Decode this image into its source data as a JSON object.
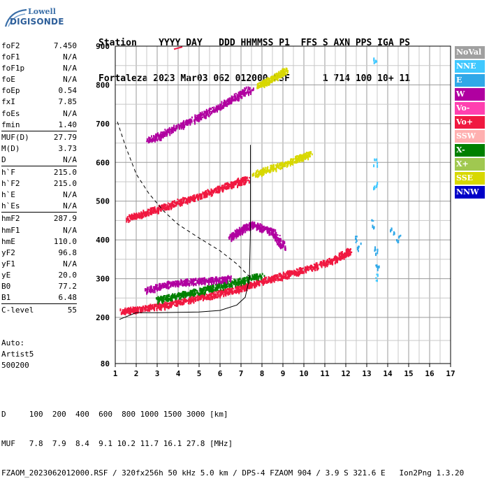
{
  "logo": {
    "top": "Lowell",
    "bottom": "DIGISONDE"
  },
  "header": {
    "line1": "Station    YYYY DAY   DDD HHMMSS P1  FFS S AXN PPS IGA PS",
    "line2": "Fortaleza 2023 Mar03 062 012000 RSF      1 714 100 10+ 11"
  },
  "params": {
    "group1": [
      {
        "name": "foF2",
        "value": "7.450"
      },
      {
        "name": "foF1",
        "value": "N/A"
      },
      {
        "name": "foF1p",
        "value": "N/A"
      },
      {
        "name": "foE",
        "value": "N/A"
      },
      {
        "name": "foEp",
        "value": "0.54"
      },
      {
        "name": "fxI",
        "value": "7.85"
      },
      {
        "name": "foEs",
        "value": "N/A"
      },
      {
        "name": "fmin",
        "value": "1.40"
      }
    ],
    "group2": [
      {
        "name": "MUF(D)",
        "value": "27.79"
      },
      {
        "name": "M(D)",
        "value": "3.73"
      },
      {
        "name": "D",
        "value": "N/A"
      }
    ],
    "group3": [
      {
        "name": "h`F",
        "value": "215.0"
      },
      {
        "name": "h`F2",
        "value": "215.0"
      },
      {
        "name": "h`E",
        "value": "N/A"
      },
      {
        "name": "h`Es",
        "value": "N/A"
      }
    ],
    "group4": [
      {
        "name": "hmF2",
        "value": "287.9"
      },
      {
        "name": "hmF1",
        "value": "N/A"
      },
      {
        "name": "hmE",
        "value": "110.0"
      },
      {
        "name": "yF2",
        "value": "96.8"
      },
      {
        "name": "yF1",
        "value": "N/A"
      },
      {
        "name": "yE",
        "value": "20.0"
      },
      {
        "name": "B0",
        "value": "77.2"
      },
      {
        "name": "B1",
        "value": "6.48"
      }
    ],
    "group5": [
      {
        "name": "C-level",
        "value": "55"
      }
    ]
  },
  "misc": {
    "line1": "Auto:",
    "line2": "Artist5",
    "line3": "500200"
  },
  "legend": [
    {
      "label": "NoVal",
      "color": "#a0a0a0"
    },
    {
      "label": "NNE",
      "color": "#40c8ff"
    },
    {
      "label": "E",
      "color": "#30a8e8"
    },
    {
      "label": "W",
      "color": "#b000a0"
    },
    {
      "label": "Vo-",
      "color": "#ff40b0"
    },
    {
      "label": "Vo+",
      "color": "#f01840"
    },
    {
      "label": "SSW",
      "color": "#ffb0b0"
    },
    {
      "label": "X-",
      "color": "#008000"
    },
    {
      "label": "X+",
      "color": "#a0c850"
    },
    {
      "label": "SSE",
      "color": "#d8d800"
    },
    {
      "label": "NNW",
      "color": "#0000c8"
    }
  ],
  "chart_data": {
    "type": "scatter",
    "xlim": [
      1,
      17
    ],
    "ylim": [
      80,
      900
    ],
    "x_ticks": [
      "1",
      "2",
      "3",
      "4",
      "5",
      "6",
      "7",
      "8",
      "9",
      "10",
      "11",
      "12",
      "13",
      "14",
      "15",
      "16",
      "17"
    ],
    "y_ticks": [
      "80",
      "200",
      "300",
      "400",
      "500",
      "600",
      "700",
      "800",
      "900"
    ],
    "grid": true,
    "traces": [
      {
        "name": "Vo+",
        "points": [
          [
            1.3,
            215
          ],
          [
            2,
            220
          ],
          [
            3,
            228
          ],
          [
            4,
            238
          ],
          [
            5,
            250
          ],
          [
            6,
            262
          ],
          [
            6.8,
            272
          ],
          [
            7.5,
            285
          ],
          [
            8.5,
            300
          ],
          [
            9.5,
            315
          ],
          [
            10.5,
            330
          ],
          [
            11.5,
            350
          ],
          [
            12.2,
            372
          ]
        ]
      },
      {
        "name": "Vo+",
        "points": [
          [
            1.6,
            455
          ],
          [
            2.5,
            470
          ],
          [
            3.5,
            488
          ],
          [
            4.5,
            505
          ],
          [
            5.5,
            522
          ],
          [
            6.5,
            542
          ],
          [
            7.3,
            558
          ]
        ]
      },
      {
        "name": "W",
        "points": [
          [
            2.6,
            655
          ],
          [
            3.5,
            680
          ],
          [
            4.5,
            705
          ],
          [
            5.5,
            730
          ],
          [
            6.5,
            760
          ],
          [
            7.5,
            792
          ]
        ]
      },
      {
        "name": "SSE",
        "points": [
          [
            7.6,
            568
          ],
          [
            8.5,
            585
          ],
          [
            9.5,
            605
          ],
          [
            10.3,
            622
          ]
        ]
      },
      {
        "name": "SSE",
        "points": [
          [
            7.8,
            798
          ],
          [
            8.5,
            815
          ],
          [
            9.2,
            838
          ]
        ]
      },
      {
        "name": "X-",
        "points": [
          [
            3,
            245
          ],
          [
            4,
            256
          ],
          [
            5,
            268
          ],
          [
            6,
            280
          ],
          [
            7,
            294
          ],
          [
            8,
            308
          ]
        ]
      },
      {
        "name": "W",
        "points": [
          [
            2.5,
            270
          ],
          [
            3.5,
            285
          ],
          [
            4.5,
            292
          ],
          [
            5.5,
            295
          ],
          [
            6.5,
            300
          ]
        ]
      },
      {
        "name": "W",
        "points": [
          [
            6.5,
            405
          ],
          [
            7,
            425
          ],
          [
            7.5,
            440
          ],
          [
            8.5,
            420
          ],
          [
            9,
            380
          ]
        ]
      },
      {
        "name": "E",
        "points": [
          [
            12.4,
            400
          ],
          [
            12.6,
            380
          ],
          [
            13.3,
            440
          ],
          [
            13.4,
            370
          ],
          [
            13.5,
            330
          ],
          [
            14.2,
            420
          ],
          [
            14.5,
            400
          ]
        ]
      },
      {
        "name": "NNE",
        "points": [
          [
            13.4,
            860
          ],
          [
            13.4,
            600
          ],
          [
            13.4,
            540
          ],
          [
            13.4,
            300
          ]
        ]
      }
    ],
    "profile_curve": [
      [
        1.2,
        195
      ],
      [
        2,
        212
      ],
      [
        3,
        212
      ],
      [
        4,
        213
      ],
      [
        5,
        214
      ],
      [
        6,
        218
      ],
      [
        6.8,
        232
      ],
      [
        7.2,
        252
      ],
      [
        7.4,
        300
      ],
      [
        7.45,
        420
      ],
      [
        7.45,
        645
      ]
    ],
    "dashed_curve": [
      [
        1.1,
        705
      ],
      [
        1.5,
        640
      ],
      [
        2,
        570
      ],
      [
        2.6,
        520
      ],
      [
        3.3,
        475
      ],
      [
        4,
        440
      ],
      [
        5,
        405
      ],
      [
        6,
        372
      ],
      [
        6.8,
        338
      ],
      [
        7.5,
        300
      ]
    ],
    "upper_fragment": [
      [
        3.8,
        892
      ],
      [
        4.2,
        898
      ]
    ]
  },
  "footer": {
    "line1": "D     100  200  400  600  800 1000 1500 3000 [km]",
    "line2": "MUF   7.8  7.9  8.4  9.1 10.2 11.7 16.1 27.8 [MHz]",
    "line3": "FZAOM_2023062012000.RSF / 320fx256h 50 kHz 5.0 km / DPS-4 FZAOM 904 / 3.9 S 321.6 E   Ion2Png 1.3.20"
  }
}
